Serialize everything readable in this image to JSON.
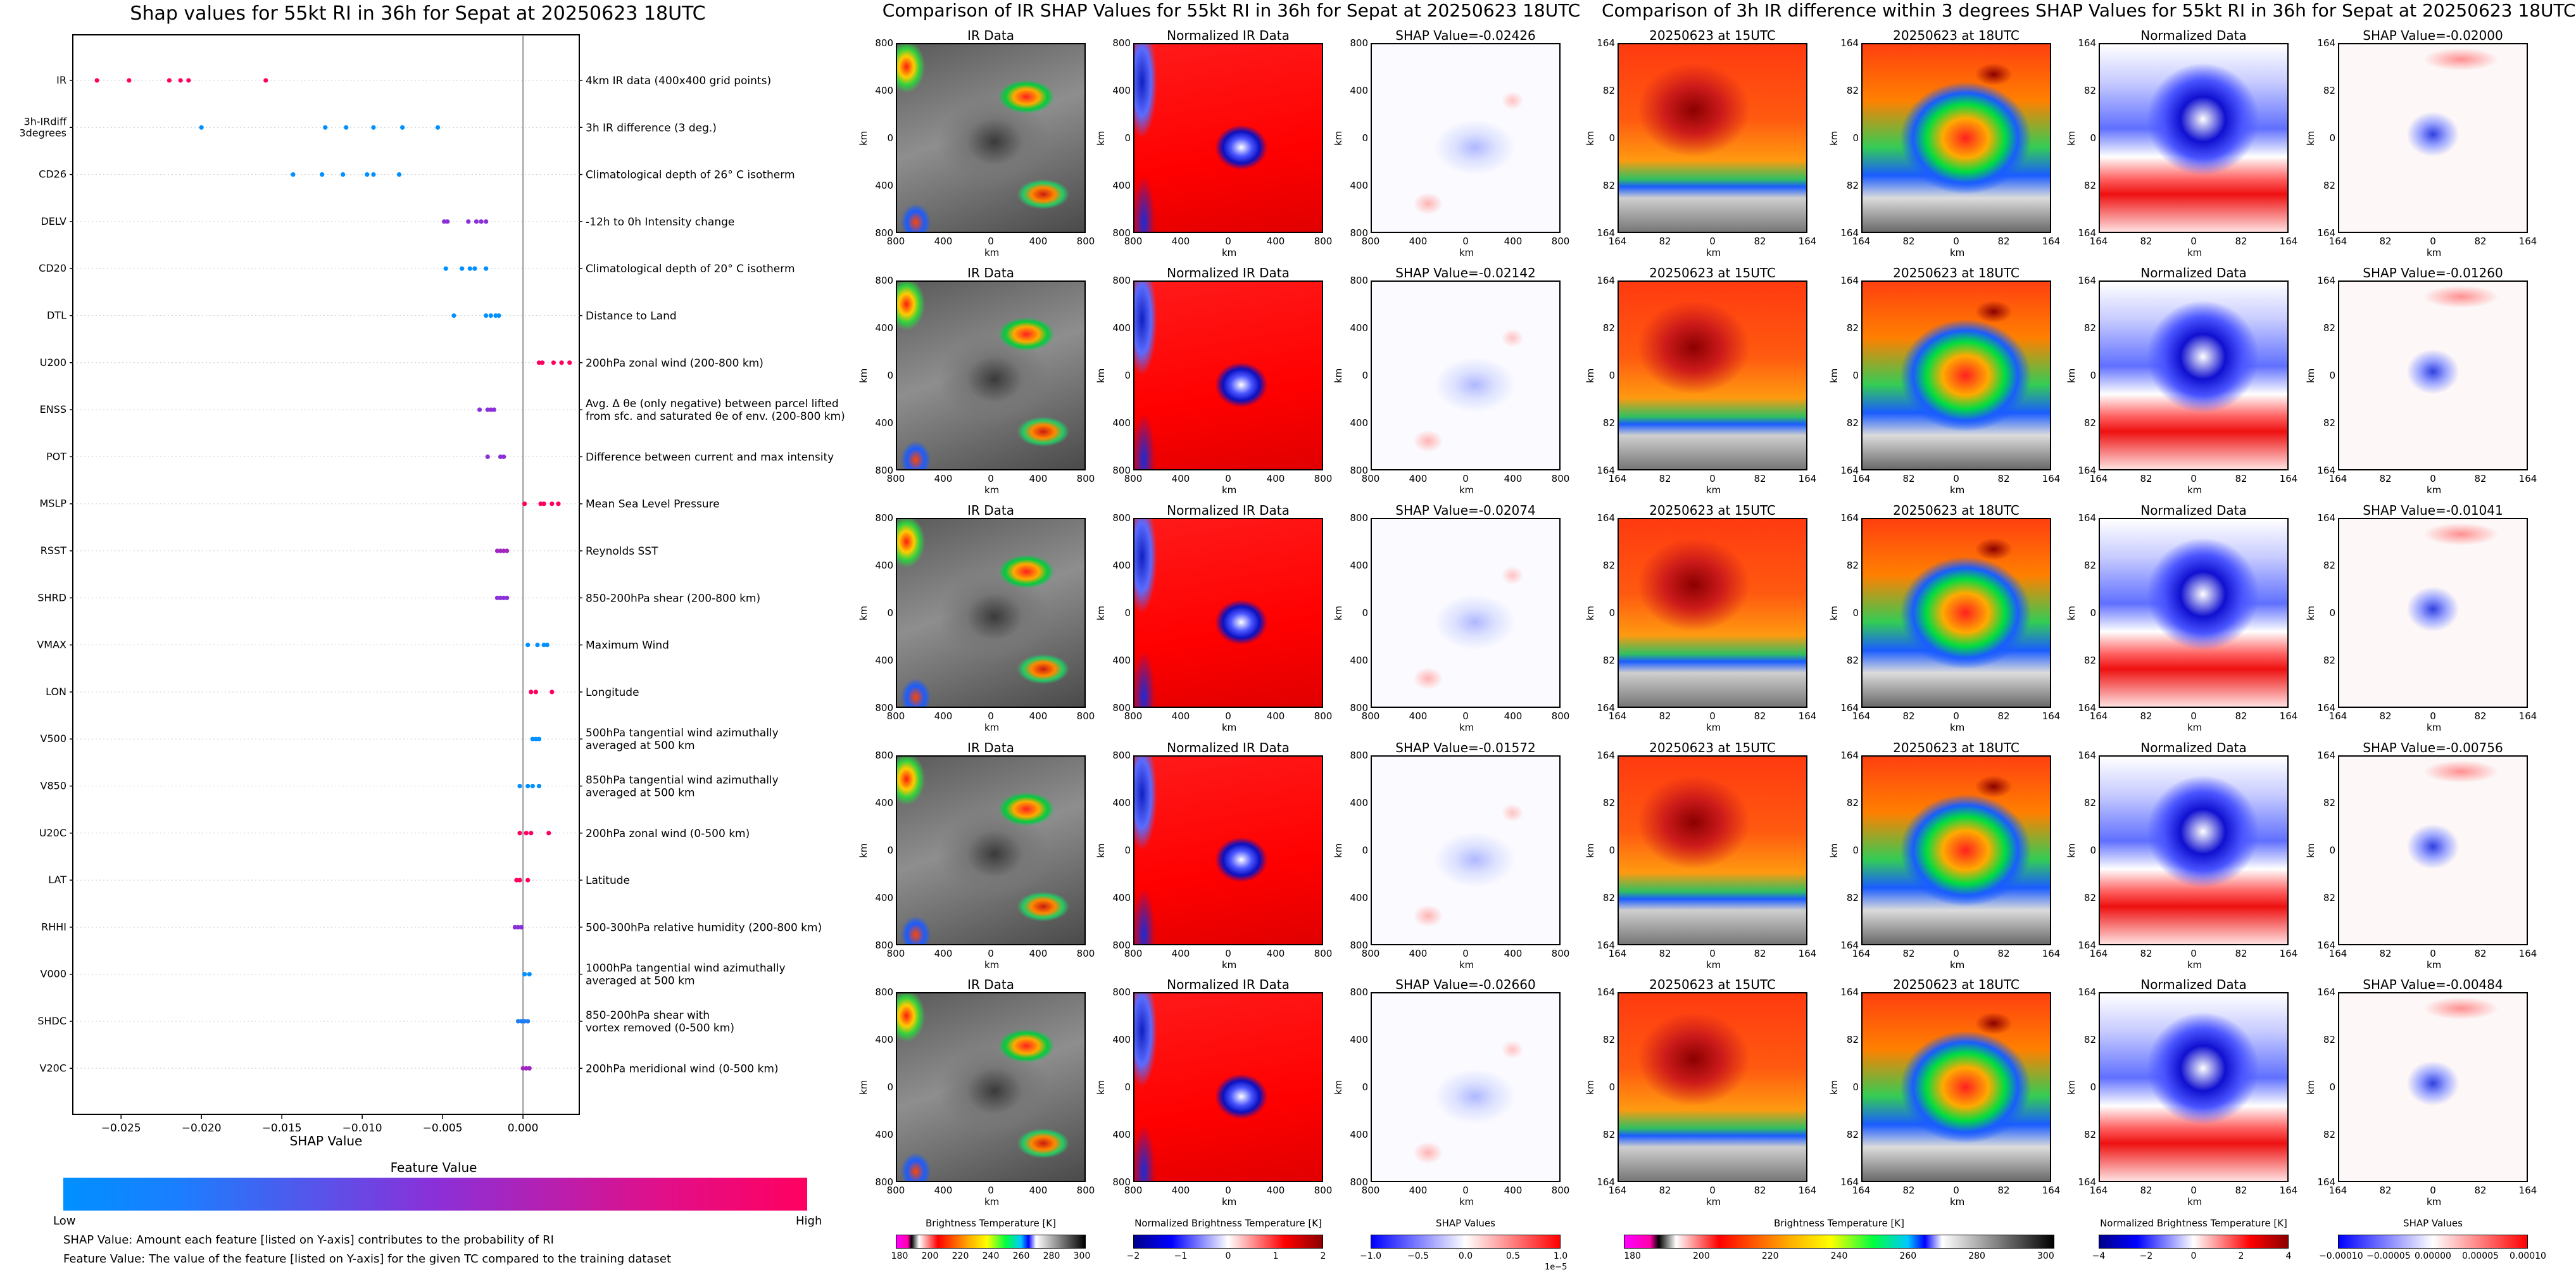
{
  "colors": {
    "low": "#0090ff",
    "mid": "#8a30d8",
    "high": "#ff0060"
  },
  "left": {
    "title": "Shap values for 55kt RI in 36h for Sepat at 20250623 18UTC",
    "xlabel": "SHAP Value",
    "xticks": [
      "−0.025",
      "−0.020",
      "−0.015",
      "−0.010",
      "−0.005",
      "0.000"
    ],
    "colorbar_title": "Feature Value",
    "colorbar_low": "Low",
    "colorbar_high": "High",
    "note1": "SHAP Value: Amount each feature [listed on Y-axis] contributes to the probability of RI",
    "note2": "Feature Value: The value of the feature [listed on Y-axis] for the given TC compared to the training dataset"
  },
  "chart_data": {
    "type": "scatter",
    "title": "Shap values for 55kt RI in 36h for Sepat at 20250623 18UTC",
    "xlabel": "SHAP Value",
    "xlim": [
      -0.028,
      0.0035
    ],
    "features": [
      {
        "name": "IR",
        "desc": "4km IR data (400x400 grid points)",
        "points": [
          [
            -0.0265,
            1
          ],
          [
            -0.0245,
            1
          ],
          [
            -0.022,
            1
          ],
          [
            -0.0213,
            1
          ],
          [
            -0.0208,
            1
          ],
          [
            -0.016,
            1
          ]
        ]
      },
      {
        "name": "3h-IRdiff\n3degrees",
        "desc": "3h IR difference (3 deg.)",
        "points": [
          [
            -0.02,
            0
          ],
          [
            -0.0123,
            0
          ],
          [
            -0.011,
            0
          ],
          [
            -0.0093,
            0
          ],
          [
            -0.0075,
            0
          ],
          [
            -0.0053,
            0
          ]
        ]
      },
      {
        "name": "CD26",
        "desc": "Climatological depth of 26° C isotherm",
        "points": [
          [
            -0.0143,
            0
          ],
          [
            -0.0125,
            0
          ],
          [
            -0.0112,
            0
          ],
          [
            -0.0097,
            0
          ],
          [
            -0.0093,
            0
          ],
          [
            -0.0077,
            0
          ]
        ]
      },
      {
        "name": "DELV",
        "desc": "-12h to 0h Intensity change",
        "points": [
          [
            -0.0049,
            0.5
          ],
          [
            -0.0047,
            0.5
          ],
          [
            -0.0034,
            0.5
          ],
          [
            -0.0029,
            0.5
          ],
          [
            -0.0026,
            0.5
          ],
          [
            -0.0023,
            0.5
          ]
        ]
      },
      {
        "name": "CD20",
        "desc": "Climatological depth of 20° C isotherm",
        "points": [
          [
            -0.0048,
            0
          ],
          [
            -0.0038,
            0
          ],
          [
            -0.0033,
            0
          ],
          [
            -0.003,
            0
          ],
          [
            -0.0023,
            0
          ]
        ]
      },
      {
        "name": "DTL",
        "desc": "Distance to Land",
        "points": [
          [
            -0.0043,
            0
          ],
          [
            -0.0023,
            0
          ],
          [
            -0.002,
            0
          ],
          [
            -0.0017,
            0
          ],
          [
            -0.0015,
            0
          ]
        ]
      },
      {
        "name": "U200",
        "desc": "200hPa zonal wind (200-800 km)",
        "points": [
          [
            0.001,
            1
          ],
          [
            0.0012,
            1
          ],
          [
            0.0019,
            1
          ],
          [
            0.0024,
            1
          ],
          [
            0.0029,
            1
          ]
        ]
      },
      {
        "name": "ENSS",
        "desc": "Avg. Δ θe (only negative) between parcel lifted\nfrom sfc. and saturated θe of env. (200-800 km)",
        "points": [
          [
            -0.0027,
            0.5
          ],
          [
            -0.0022,
            0.5
          ],
          [
            -0.002,
            0.5
          ],
          [
            -0.0018,
            0.5
          ]
        ]
      },
      {
        "name": "POT",
        "desc": "Difference between current and max intensity",
        "points": [
          [
            -0.0022,
            0.5
          ],
          [
            -0.0014,
            0.5
          ],
          [
            -0.0012,
            0.5
          ]
        ]
      },
      {
        "name": "MSLP",
        "desc": "Mean Sea Level Pressure",
        "points": [
          [
            0.0001,
            1
          ],
          [
            0.0011,
            1
          ],
          [
            0.0013,
            1
          ],
          [
            0.0018,
            1
          ],
          [
            0.0022,
            1
          ]
        ]
      },
      {
        "name": "RSST",
        "desc": "Reynolds SST",
        "points": [
          [
            -0.0016,
            0.6
          ],
          [
            -0.0014,
            0.6
          ],
          [
            -0.0012,
            0.6
          ],
          [
            -0.001,
            0.6
          ]
        ]
      },
      {
        "name": "SHRD",
        "desc": "850-200hPa shear (200-800 km)",
        "points": [
          [
            -0.0016,
            0.5
          ],
          [
            -0.0014,
            0.5
          ],
          [
            -0.0012,
            0.5
          ],
          [
            -0.001,
            0.5
          ]
        ]
      },
      {
        "name": "VMAX",
        "desc": "Maximum Wind",
        "points": [
          [
            0.0003,
            0
          ],
          [
            0.0009,
            0
          ],
          [
            0.0013,
            0
          ],
          [
            0.0015,
            0
          ]
        ]
      },
      {
        "name": "LON",
        "desc": "Longitude",
        "points": [
          [
            0.0005,
            1
          ],
          [
            0.0008,
            1
          ],
          [
            0.0018,
            1
          ]
        ]
      },
      {
        "name": "V500",
        "desc": "500hPa tangential wind azimuthally\naveraged at 500 km",
        "points": [
          [
            0.0006,
            0
          ],
          [
            0.0008,
            0
          ],
          [
            0.001,
            0
          ]
        ]
      },
      {
        "name": "V850",
        "desc": "850hPa tangential wind azimuthally\naveraged at 500 km",
        "points": [
          [
            -0.0002,
            0
          ],
          [
            0.0003,
            0
          ],
          [
            0.0006,
            0
          ],
          [
            0.001,
            0
          ]
        ]
      },
      {
        "name": "U20C",
        "desc": "200hPa zonal wind (0-500 km)",
        "points": [
          [
            -0.0002,
            1
          ],
          [
            0.0002,
            1
          ],
          [
            0.0005,
            1
          ],
          [
            0.0016,
            1
          ]
        ]
      },
      {
        "name": "LAT",
        "desc": "Latitude",
        "points": [
          [
            -0.0004,
            1
          ],
          [
            -0.0002,
            1
          ],
          [
            0.0003,
            1
          ]
        ]
      },
      {
        "name": "RHHI",
        "desc": "500-300hPa relative humidity (200-800 km)",
        "points": [
          [
            -0.0005,
            0.5
          ],
          [
            -0.0003,
            0.5
          ],
          [
            -0.0001,
            0.5
          ]
        ]
      },
      {
        "name": "V000",
        "desc": "1000hPa tangential wind azimuthally\naveraged at 500 km",
        "points": [
          [
            0.0001,
            0
          ],
          [
            0.0004,
            0
          ]
        ]
      },
      {
        "name": "SHDC",
        "desc": "850-200hPa shear with\nvortex removed (0-500 km)",
        "points": [
          [
            -0.0003,
            0.1
          ],
          [
            -0.0001,
            0.1
          ],
          [
            0.0001,
            0.1
          ],
          [
            0.0003,
            0.1
          ]
        ]
      },
      {
        "name": "V20C",
        "desc": "200hPa meridional wind (0-500 km)",
        "points": [
          [
            0.0,
            0.6
          ],
          [
            0.0002,
            0.6
          ],
          [
            0.0004,
            0.6
          ]
        ]
      }
    ]
  },
  "middle": {
    "title": "Comparison of IR SHAP Values for 55kt RI in 36h for Sepat at 20250623 18UTC",
    "col1_title": "IR Data",
    "col2_title": "Normalized IR Data",
    "shap_prefix": "SHAP Value=",
    "rows": [
      "-0.02426",
      "-0.02142",
      "-0.02074",
      "-0.01572",
      "-0.02660"
    ],
    "yticks": [
      "800",
      "400",
      "0",
      "400",
      "800"
    ],
    "xticks": [
      "800",
      "400",
      "0",
      "400",
      "800"
    ],
    "axis_unit": "km",
    "cb1_label": "Brightness Temperature [K]",
    "cb1_ticks": [
      "180",
      "200",
      "220",
      "240",
      "260",
      "280",
      "300"
    ],
    "cb2_label": "Normalized Brightness Temperature [K]",
    "cb2_ticks": [
      "−2",
      "−1",
      "0",
      "1",
      "2"
    ],
    "cb3_label": "SHAP Values",
    "cb3_ticks": [
      "−1.0",
      "−0.5",
      "0.0",
      "0.5",
      "1.0"
    ],
    "cb3_exp": "1e−5"
  },
  "right": {
    "title": "Comparison of 3h IR difference within 3 degrees SHAP Values for 55kt RI in 36h for Sepat at 20250623 18UTC",
    "col1_title": "20250623 at 15UTC",
    "col2_title": "20250623 at 18UTC",
    "col3_title": "Normalized Data",
    "shap_prefix": "SHAP Value=",
    "rows": [
      "-0.02000",
      "-0.01260",
      "-0.01041",
      "-0.00756",
      "-0.00484"
    ],
    "yticks": [
      "164",
      "82",
      "0",
      "82",
      "164"
    ],
    "xticks": [
      "164",
      "82",
      "0",
      "82",
      "164"
    ],
    "axis_unit": "km",
    "cb1_label": "Brightness Temperature [K]",
    "cb1_ticks": [
      "180",
      "200",
      "220",
      "240",
      "260",
      "280",
      "300"
    ],
    "cb2_label": "Normalized Brightness Temperature [K]",
    "cb2_ticks": [
      "−4",
      "−2",
      "0",
      "2",
      "4"
    ],
    "cb3_label": "SHAP Values",
    "cb3_ticks": [
      "−0.00010",
      "−0.00005",
      "0.00000",
      "0.00005",
      "0.00010"
    ]
  }
}
